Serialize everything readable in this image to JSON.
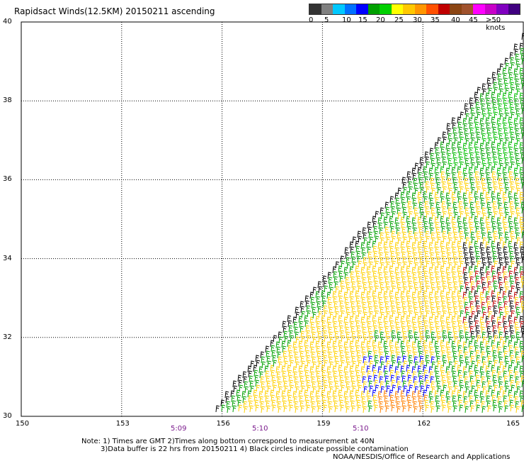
{
  "title": "Rapidsact Winds(12.5KM) 20150211 ascending",
  "legend": {
    "colors": [
      "#333333",
      "#808080",
      "#00c8ff",
      "#0070ff",
      "#0000ff",
      "#00a000",
      "#00d000",
      "#ffff00",
      "#ffc800",
      "#ff9600",
      "#ff5000",
      "#c00000",
      "#8b4513",
      "#a0522d",
      "#ff00ff",
      "#c800c8",
      "#8000c0",
      "#400080"
    ],
    "ticks": [
      "0",
      "5",
      "10",
      "15",
      "20",
      "25",
      "30",
      "35",
      "40",
      "45",
      ">50 knots"
    ]
  },
  "axes": {
    "lat_labels": [
      "40",
      "38",
      "36",
      "34",
      "32",
      "30"
    ],
    "lon_labels": [
      "150",
      "153",
      "156",
      "159",
      "162",
      "165"
    ]
  },
  "times": [
    "5:09",
    "5:10",
    "5:10"
  ],
  "notes": [
    "Note: 1) Times are GMT 2)Times along bottom correspond to measurement at 40N",
    "3)Data buffer is 22 hrs from 20150211 4) Black circles indicate possible contamination",
    "NOAA/NESDIS/Office of Research and Applications"
  ],
  "chart_data": {
    "type": "map",
    "lat_range": [
      30,
      40
    ],
    "lon_range": [
      150,
      165
    ],
    "gridlines": {
      "lat": [
        32,
        34,
        36,
        38
      ],
      "lon": [
        153,
        156,
        159,
        162
      ]
    },
    "swath": "triangle from about (155.6E,30N) to (165E,39.6N) to (165E,30N)",
    "wind_regions": [
      {
        "description": "swath edge",
        "speed_knots": "0-5",
        "color": "#000000"
      },
      {
        "description": "northern and eastern parts",
        "speed_knots": "15-20",
        "color": "#00a000"
      },
      {
        "description": "central band",
        "speed_knots": "20-25",
        "color": "#ffd000"
      },
      {
        "description": "southern section near 160-162E",
        "speed_knots": "10-15",
        "color": "#0000ff"
      },
      {
        "description": "far south near 161-162E",
        "speed_knots": "25-35",
        "color": "#ff8000"
      },
      {
        "description": "east edge near 33N",
        "speed_knots": "30-35",
        "color": "#c00000"
      }
    ]
  }
}
